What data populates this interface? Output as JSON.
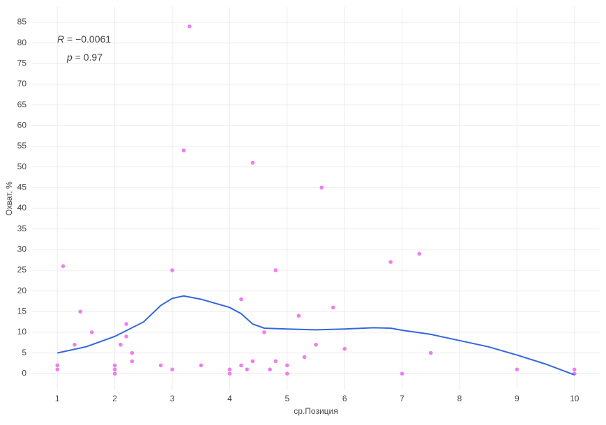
{
  "chart_data": {
    "type": "scatter",
    "x_label": "ср.Позиция",
    "y_label": "Охват, %",
    "annotations": [
      {
        "symbol": "R",
        "text": " = −0.0061"
      },
      {
        "symbol": "p",
        "text": " = 0.97"
      }
    ],
    "x": [
      1,
      1,
      1.1,
      1.3,
      1.4,
      1.6,
      2,
      2,
      2,
      2.1,
      2.2,
      2.2,
      2.3,
      2.3,
      2.8,
      3,
      3,
      3.2,
      3.3,
      3.5,
      4,
      4,
      4.2,
      4.2,
      4.3,
      4.4,
      4.4,
      4.6,
      4.7,
      4.8,
      4.8,
      5,
      5,
      5.2,
      5.3,
      5.5,
      5.6,
      5.8,
      6,
      6.8,
      7,
      7.3,
      7.5,
      9,
      10,
      10
    ],
    "values": [
      2,
      1,
      26,
      7,
      15,
      10,
      2,
      1,
      0,
      7,
      12,
      9,
      5,
      3,
      2,
      25,
      1,
      54,
      84,
      2,
      1,
      0,
      18,
      2,
      1,
      51,
      3,
      10,
      1,
      25,
      3,
      2,
      0,
      14,
      4,
      7,
      45,
      16,
      6,
      27,
      0,
      29,
      5,
      1,
      1,
      0
    ],
    "color": "#f07cf0",
    "smooth": {
      "x": [
        1,
        1.5,
        2,
        2.5,
        2.8,
        3,
        3.2,
        3.5,
        4,
        4.2,
        4.4,
        4.6,
        5,
        5.5,
        6,
        6.5,
        6.8,
        7,
        7.5,
        8,
        8.5,
        9,
        9.5,
        10
      ],
      "values": [
        5,
        6.5,
        9,
        12.5,
        16.5,
        18.2,
        18.8,
        18,
        16,
        14.5,
        12,
        11,
        10.8,
        10.6,
        10.8,
        11.1,
        11,
        10.5,
        9.5,
        8,
        6.5,
        4.5,
        2.3,
        -0.3
      ],
      "color": "#3366dd"
    },
    "xlim": [
      0.56,
      10.44
    ],
    "xticks": [
      1,
      2,
      3,
      4,
      5,
      6,
      7,
      8,
      9,
      10
    ],
    "ylim": [
      -4,
      88.7
    ],
    "yticks": [
      0,
      5,
      10,
      15,
      20,
      25,
      30,
      35,
      40,
      45,
      50,
      55,
      60,
      65,
      70,
      75,
      80,
      85
    ],
    "grid": true
  }
}
